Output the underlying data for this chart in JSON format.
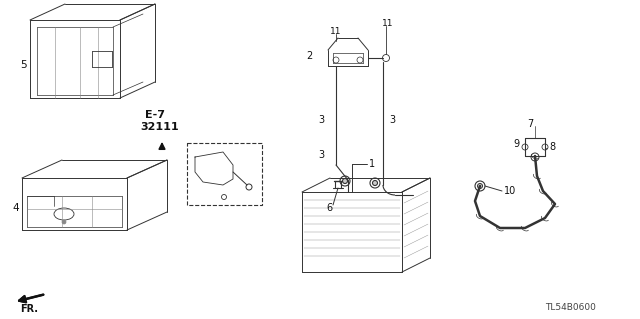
{
  "background_color": "#ffffff",
  "part_code": "TL54B0600",
  "line_color": "#333333",
  "dark_color": "#555555",
  "label_fontsize": 6.5,
  "text_color": "#111111",
  "parts": {
    "5_label": "5",
    "4_label": "4",
    "1_label": "1",
    "2_label": "2",
    "3_label": "3",
    "6_label": "6",
    "7_label": "7",
    "8_label": "8",
    "9_label": "9",
    "10_label": "10",
    "11_label": "11"
  }
}
